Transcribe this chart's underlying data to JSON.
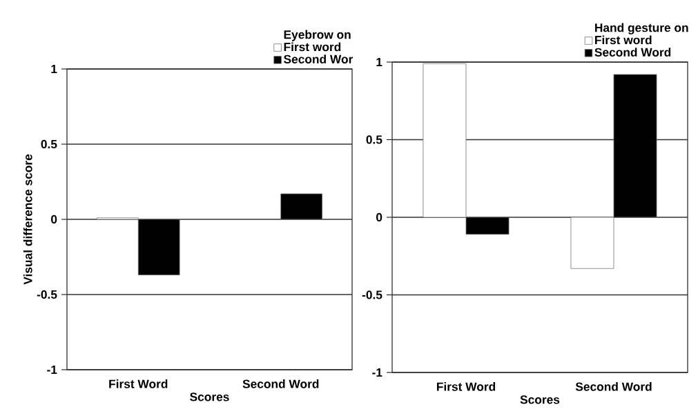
{
  "chart_data": [
    {
      "type": "bar",
      "xlabel": "Scores",
      "ylabel": "Visual difference score",
      "legend_title": "Eyebrow on",
      "categories": [
        "First Word",
        "Second Word"
      ],
      "series": [
        {
          "name": "First word",
          "color": "#ffffff",
          "values": [
            0.01,
            null
          ]
        },
        {
          "name": "Second Wor",
          "color": "#000000",
          "values": [
            -0.37,
            0.17
          ]
        }
      ],
      "ylim": [
        -1,
        1
      ],
      "yticks": [
        -1,
        -0.5,
        0,
        0.5,
        1
      ],
      "grid": "y",
      "legend": "top right"
    },
    {
      "type": "bar",
      "xlabel": "Scores",
      "legend_title": "Hand gesture on",
      "categories": [
        "First Word",
        "Second Word"
      ],
      "series": [
        {
          "name": "First word",
          "color": "#ffffff",
          "values": [
            0.99,
            -0.33
          ]
        },
        {
          "name": "Second Word",
          "color": "#000000",
          "values": [
            -0.11,
            0.92
          ]
        }
      ],
      "ylim": [
        -1,
        1
      ],
      "yticks": [
        -1,
        -0.5,
        0,
        0.5,
        1
      ],
      "grid": "y",
      "legend": "top right"
    }
  ]
}
